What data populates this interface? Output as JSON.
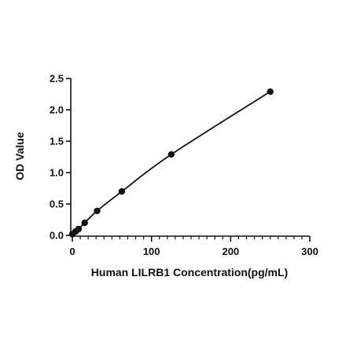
{
  "chart_data": {
    "type": "scatter",
    "title": "",
    "xlabel": "Human LILRB1 Concentration(pg/mL)",
    "ylabel": "OD Value",
    "xlim": [
      0,
      300
    ],
    "ylim": [
      0,
      2.5
    ],
    "x_ticks": [
      0,
      100,
      200,
      300
    ],
    "x_tick_labels": [
      "0",
      "100",
      "200",
      "300"
    ],
    "y_ticks": [
      0,
      0.5,
      1.0,
      1.5,
      2.0,
      2.5
    ],
    "y_tick_labels": [
      "0.0",
      "0.5",
      "1.0",
      "1.5",
      "2.0",
      "2.5"
    ],
    "x_minor_step": 10,
    "grid": false,
    "legend": "none",
    "fitted_curve": true,
    "colors": {
      "marker": "#111111",
      "line": "#111111",
      "axis": "#111111"
    },
    "series": [
      {
        "x": [
          0,
          3.9,
          7.8,
          15.6,
          31.25,
          62.5,
          125,
          250
        ],
        "y": [
          0.02,
          0.06,
          0.1,
          0.2,
          0.39,
          0.7,
          1.29,
          2.29
        ]
      }
    ]
  }
}
